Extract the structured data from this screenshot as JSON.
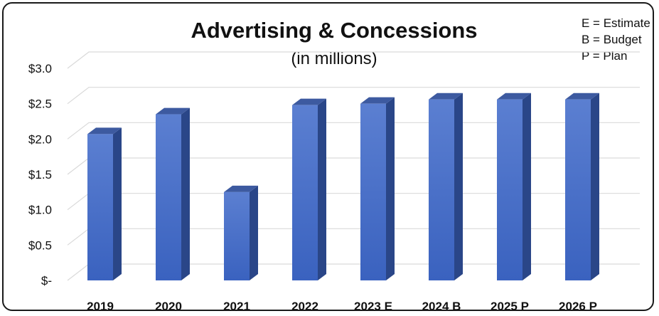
{
  "chart_data": {
    "type": "bar",
    "title": "Advertising & Concessions",
    "subtitle": "(in millions)",
    "legend_notes": [
      "E = Estimate",
      "B = Budget",
      "P = Plan"
    ],
    "categories": [
      "2019",
      "2020",
      "2021",
      "2022",
      "2023 E",
      "2024 B",
      "2025 P",
      "2026 P"
    ],
    "values": [
      2.07,
      2.35,
      1.25,
      2.48,
      2.5,
      2.56,
      2.56,
      2.56
    ],
    "ytick_labels": [
      "$-",
      "$0.5",
      "$1.0",
      "$1.5",
      "$2.0",
      "$2.5",
      "$3.0"
    ],
    "ytick_values": [
      0,
      0.5,
      1.0,
      1.5,
      2.0,
      2.5,
      3.0
    ],
    "ylim": [
      0,
      3.0
    ],
    "xlabel": "",
    "ylabel": "",
    "grid": true,
    "legend_position": "top-right",
    "colors": {
      "bar_front_top": "#5b7fd1",
      "bar_front_bottom": "#3a62bf",
      "bar_side": "#2a4688",
      "bar_top": "#3d5aa0",
      "gridline": "#d9d9d9"
    }
  }
}
